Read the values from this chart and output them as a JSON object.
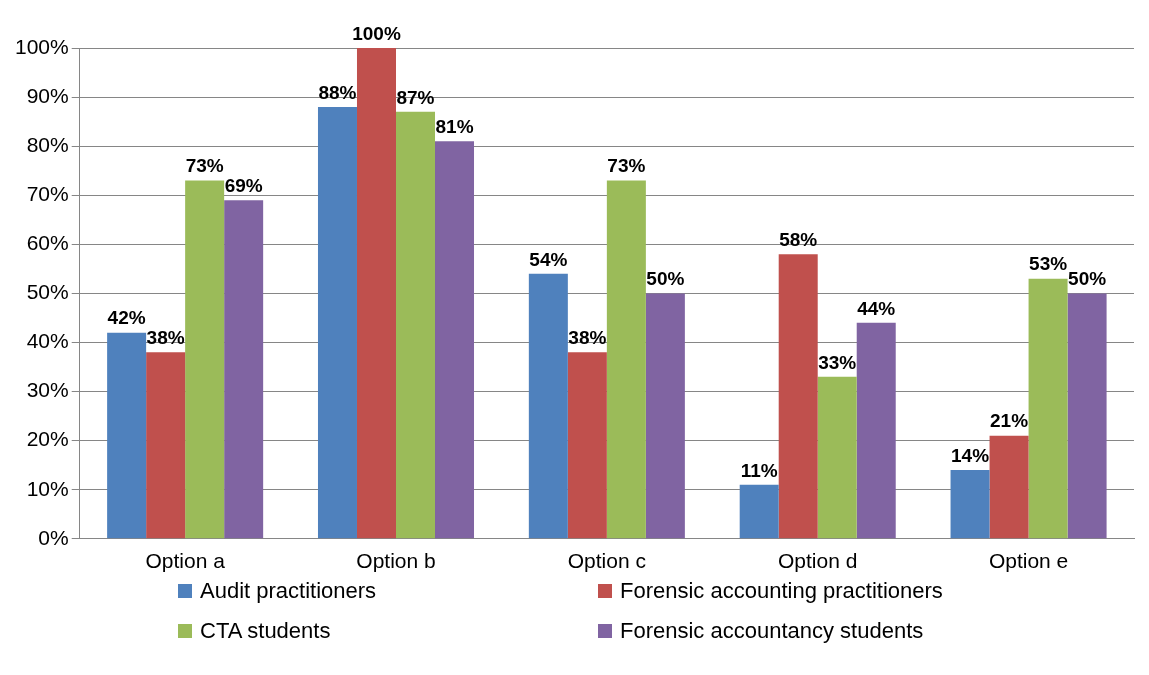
{
  "chart_data": {
    "type": "bar",
    "categories": [
      "Option a",
      "Option b",
      "Option c",
      "Option d",
      "Option e"
    ],
    "series": [
      {
        "name": "Audit practitioners",
        "color": "#4f81bd",
        "values": [
          42,
          88,
          54,
          11,
          14
        ],
        "value_labels": [
          "42%",
          "88%",
          "54%",
          "11%",
          "14%"
        ]
      },
      {
        "name": "Forensic accounting practitioners",
        "color": "#c0504d",
        "values": [
          38,
          100,
          38,
          58,
          21
        ],
        "value_labels": [
          "38%",
          "100%",
          "38%",
          "58%",
          "21%"
        ]
      },
      {
        "name": "CTA students",
        "color": "#9bbb59",
        "values": [
          73,
          87,
          73,
          33,
          53
        ],
        "value_labels": [
          "73%",
          "87%",
          "73%",
          "33%",
          "53%"
        ]
      },
      {
        "name": "Forensic accountancy students",
        "color": "#8064a2",
        "values": [
          69,
          81,
          50,
          44,
          50
        ],
        "value_labels": [
          "69%",
          "81%",
          "50%",
          "44%",
          "50%"
        ]
      }
    ],
    "ylim": [
      0,
      100
    ],
    "yticks": [
      {
        "value": 0,
        "label": "0%"
      },
      {
        "value": 10,
        "label": "10%"
      },
      {
        "value": 20,
        "label": "20%"
      },
      {
        "value": 30,
        "label": "30%"
      },
      {
        "value": 40,
        "label": "40%"
      },
      {
        "value": 50,
        "label": "50%"
      },
      {
        "value": 60,
        "label": "60%"
      },
      {
        "value": 70,
        "label": "70%"
      },
      {
        "value": 80,
        "label": "80%"
      },
      {
        "value": 90,
        "label": "90%"
      },
      {
        "value": 100,
        "label": "100%"
      }
    ],
    "grid": "y",
    "legend": "bottom"
  }
}
